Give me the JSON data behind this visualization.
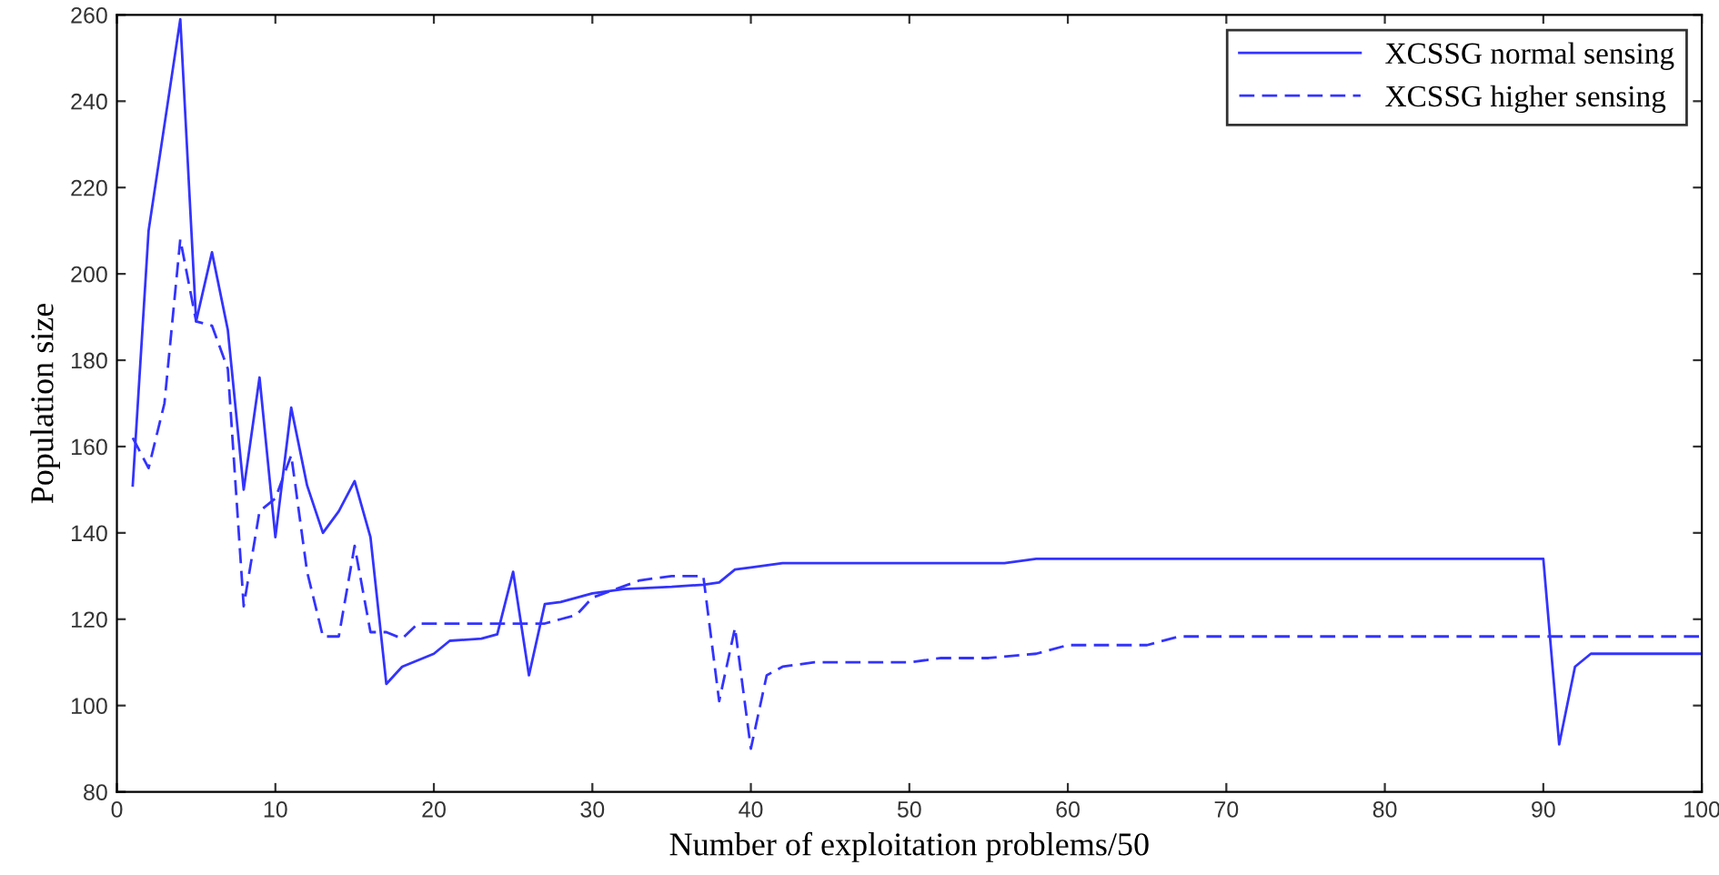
{
  "chart_data": {
    "type": "line",
    "xlabel": "Number of exploitation problems/50",
    "ylabel": "Population size",
    "xlim": [
      0,
      100
    ],
    "ylim": [
      80,
      260
    ],
    "xticks": [
      0,
      10,
      20,
      30,
      40,
      50,
      60,
      70,
      80,
      90,
      100
    ],
    "yticks": [
      80,
      100,
      120,
      140,
      160,
      180,
      200,
      220,
      240,
      260
    ],
    "grid": false,
    "legend": "top right",
    "marker": "none",
    "series": [
      {
        "name": "XCSSG normal sensing",
        "color": "#3333ff",
        "line_style": "solid",
        "x": [
          1,
          2,
          4,
          5,
          6,
          7,
          8,
          9,
          10,
          11,
          12,
          13,
          14,
          15,
          16,
          17,
          18,
          20,
          21,
          23,
          24,
          25,
          26,
          27,
          28,
          29,
          30,
          32,
          35,
          37,
          38,
          39,
          40,
          42,
          56,
          58,
          90,
          91,
          92,
          93,
          100
        ],
        "values": [
          151,
          210,
          259,
          189,
          205,
          187,
          150,
          176,
          139,
          169,
          151,
          140,
          145,
          152,
          139,
          105,
          109,
          112,
          115,
          115.5,
          116.5,
          131,
          107,
          123.5,
          124,
          125,
          126,
          127,
          127.5,
          128,
          128.5,
          131.5,
          132,
          133,
          133,
          134,
          134,
          91,
          109,
          112,
          112
        ]
      },
      {
        "name": "XCSSG higher sensing",
        "color": "#3333ff",
        "line_style": "dashed",
        "x": [
          1,
          2,
          3,
          4,
          5,
          6,
          7,
          8,
          9,
          10,
          11,
          12,
          13,
          14,
          15,
          16,
          17,
          18,
          19,
          27,
          28,
          29,
          30,
          33,
          35,
          37,
          38,
          39,
          40,
          41,
          42,
          44,
          50,
          52,
          55,
          58,
          60,
          65,
          67,
          100
        ],
        "values": [
          162,
          155,
          170,
          208,
          189,
          188,
          178,
          123,
          145,
          148,
          158,
          131,
          116,
          116,
          137,
          117,
          117,
          115.5,
          119,
          119,
          120,
          121,
          125,
          129,
          130,
          130,
          101,
          118,
          90,
          107,
          109,
          110,
          110,
          111,
          111,
          112,
          114,
          114,
          116,
          116
        ]
      }
    ]
  }
}
